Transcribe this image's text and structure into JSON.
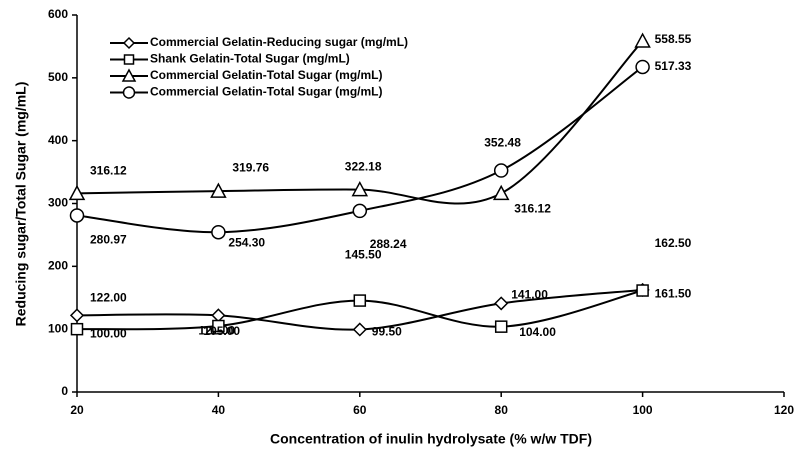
{
  "chart_data": {
    "type": "line",
    "x_label": "Concentration of inulin hydrolysate (% w/w TDF)",
    "y_label": "Reducing sugar/Total Sugar (mg/mL)",
    "x": [
      20,
      40,
      60,
      80,
      100
    ],
    "xlim": [
      20,
      120
    ],
    "xticks": [
      20,
      40,
      60,
      80,
      100,
      120
    ],
    "ylim": [
      0,
      600
    ],
    "yticks": [
      0,
      100,
      200,
      300,
      400,
      500,
      600
    ],
    "grid": false,
    "legend": "upper left",
    "series": [
      {
        "name": "Commercial Gelatin-Reducing sugar (mg/mL)",
        "color": "#000000",
        "marker": "diamond",
        "values": [
          122,
          122,
          99.5,
          141,
          162.5
        ],
        "value_labels": [
          "122.00",
          "122.00",
          "99.50",
          "141.00",
          "162.50"
        ]
      },
      {
        "name": "Shank Gelatin-Total Sugar (mg/mL)",
        "color": "#000000",
        "marker": "square",
        "values": [
          100,
          105,
          145.5,
          104,
          161.5
        ],
        "value_labels": [
          "100.00",
          "105.00",
          "145.50",
          "104.00",
          "161.50"
        ]
      },
      {
        "name": "Commercial Gelatin-Total Sugar (mg/mL)",
        "color": "#000000",
        "marker": "triangle",
        "values": [
          316.12,
          319.76,
          322.18,
          316.12,
          558.55
        ],
        "value_labels": [
          "316.12",
          "319.76",
          "322.18",
          "316.12",
          "558.55"
        ]
      },
      {
        "name": "Commercial Gelatin-Total Sugar (mg/mL)",
        "color": "#000000",
        "marker": "circle",
        "values": [
          280.97,
          254.3,
          288.24,
          352.48,
          517.33
        ],
        "value_labels": [
          "280.97",
          "254.30",
          "288.24",
          "352.48",
          "517.33"
        ]
      }
    ]
  }
}
